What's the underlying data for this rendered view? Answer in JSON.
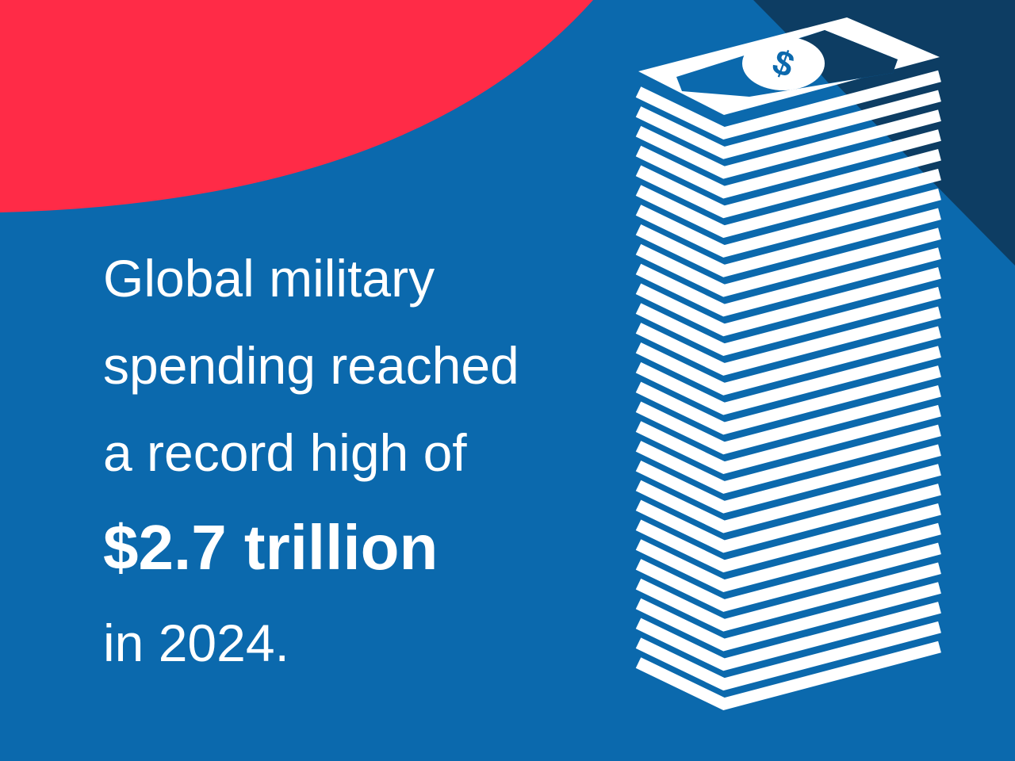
{
  "headline": {
    "line1": "Global military",
    "line2": "spending reached",
    "line3": "a record high of",
    "amount": "$2.7 trillion",
    "line5": "in 2024."
  },
  "colors": {
    "background": "#0b69ad",
    "accent_red": "#ff2b47",
    "dark_blue": "#0d3d63",
    "white": "#ffffff"
  },
  "icons": {
    "illustration": "money-stack-icon",
    "bill_symbol": "dollar-sign-icon"
  }
}
